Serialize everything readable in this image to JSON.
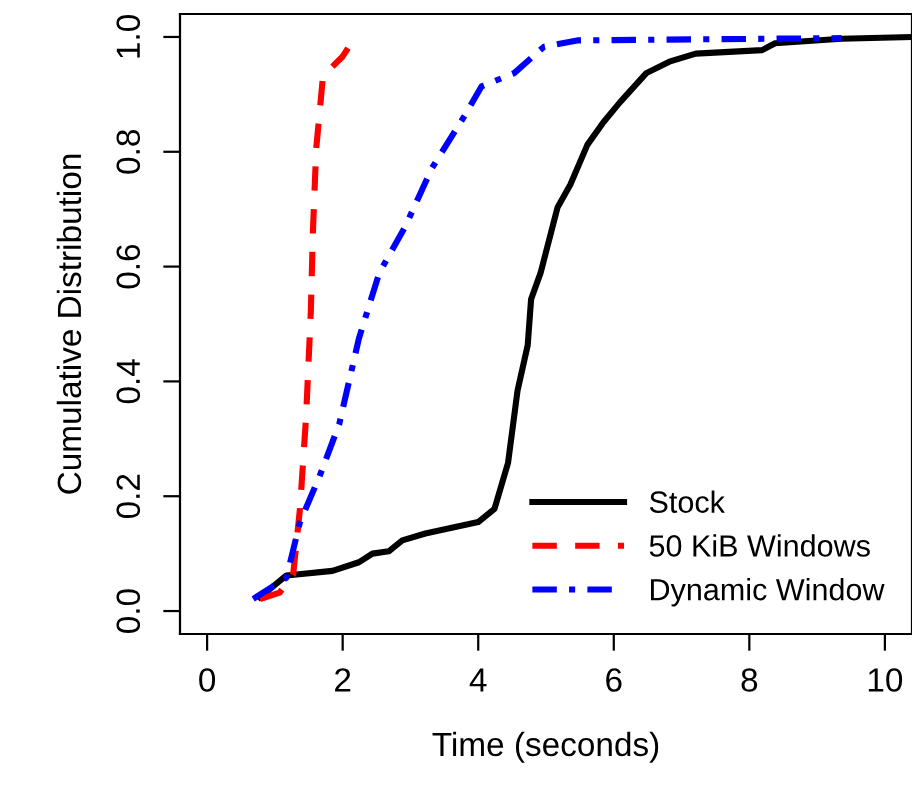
{
  "chart_data": {
    "type": "line",
    "xlabel": "Time (seconds)",
    "ylabel": "Cumulative Distribution",
    "xlim": [
      -0.4,
      10.4
    ],
    "ylim": [
      -0.04,
      1.04
    ],
    "xticks": [
      0,
      2,
      4,
      6,
      8,
      10
    ],
    "yticks": [
      {
        "value": 0,
        "label": "0.0"
      },
      {
        "value": 0.2,
        "label": "0.2"
      },
      {
        "value": 0.4,
        "label": "0.4"
      },
      {
        "value": 0.6,
        "label": "0.6"
      },
      {
        "value": 0.8,
        "label": "0.8"
      },
      {
        "value": 1,
        "label": "1.0"
      }
    ],
    "grid": false,
    "legend": "bottom right",
    "series": [
      {
        "name": "Stock",
        "color": "#000000",
        "line_style": "solid",
        "x": [
          0.78,
          1.17,
          1.85,
          2.24,
          2.44,
          2.68,
          2.88,
          3.22,
          4.0,
          4.24,
          4.44,
          4.58,
          4.73,
          4.78,
          4.92,
          5.17,
          5.36,
          5.61,
          5.85,
          6.09,
          6.48,
          6.82,
          7.21,
          8.19,
          8.38,
          9.36,
          10.4
        ],
        "values": [
          0.024,
          0.062,
          0.07,
          0.085,
          0.1,
          0.104,
          0.123,
          0.135,
          0.155,
          0.178,
          0.258,
          0.384,
          0.463,
          0.543,
          0.589,
          0.703,
          0.743,
          0.812,
          0.852,
          0.886,
          0.937,
          0.957,
          0.971,
          0.977,
          0.989,
          0.997,
          1.0
        ]
      },
      {
        "name": "50 KiB Windows",
        "color": "#ff0000",
        "line_style": "dashed",
        "x": [
          0.78,
          1.07,
          1.27,
          1.37,
          1.46,
          1.53,
          1.56,
          1.61,
          1.71,
          2.0,
          2.15
        ],
        "values": [
          0.021,
          0.032,
          0.064,
          0.178,
          0.338,
          0.521,
          0.658,
          0.806,
          0.932,
          0.966,
          0.994
        ]
      },
      {
        "name": "Dynamic Window",
        "color": "#0000ff",
        "line_style": "dashdot",
        "x": [
          0.68,
          1.17,
          1.37,
          1.66,
          1.95,
          2.24,
          2.54,
          2.92,
          3.32,
          3.8,
          4.05,
          4.53,
          4.97,
          5.46,
          9.36
        ],
        "values": [
          0.021,
          0.058,
          0.155,
          0.235,
          0.326,
          0.475,
          0.589,
          0.669,
          0.772,
          0.863,
          0.914,
          0.937,
          0.983,
          0.994,
          0.998
        ]
      }
    ]
  }
}
